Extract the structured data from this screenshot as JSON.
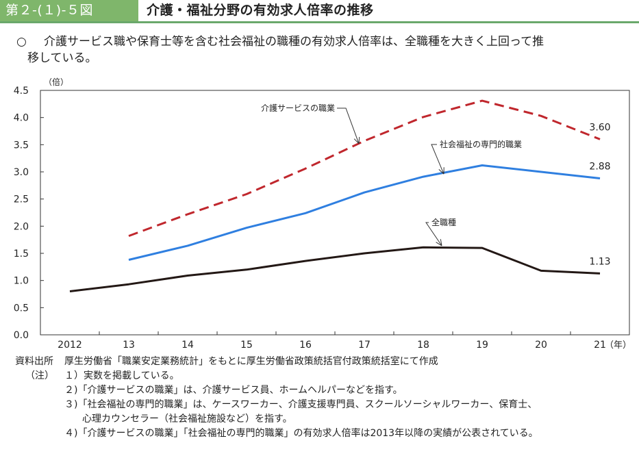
{
  "header": {
    "figure_label": "第２-(１)-５図",
    "title": "介護・福祉分野の有効求人倍率の推移"
  },
  "lead": {
    "mark": "○",
    "line1": "介護サービス職や保育士等を含む社会福祉の職種の有効求人倍率は、全職種を大きく上回って推",
    "line2": "移している。"
  },
  "chart_data": {
    "type": "line",
    "ylabel": "（倍）",
    "xunit": "（年）",
    "ylim": [
      0,
      4.5
    ],
    "yticks": [
      "0.0",
      "0.5",
      "1.0",
      "1.5",
      "2.0",
      "2.5",
      "3.0",
      "3.5",
      "4.0",
      "4.5"
    ],
    "x": [
      "2012",
      "13",
      "14",
      "15",
      "16",
      "17",
      "18",
      "19",
      "20",
      "21"
    ],
    "series": [
      {
        "name": "介護サービスの職業",
        "values": [
          null,
          1.82,
          2.22,
          2.59,
          3.06,
          3.57,
          4.01,
          4.31,
          4.03,
          3.6
        ],
        "color": "#c0272d",
        "dashed": true,
        "end_label": "3.60"
      },
      {
        "name": "社会福祉の専門的職業",
        "values": [
          null,
          1.38,
          1.64,
          1.97,
          2.24,
          2.62,
          2.91,
          3.12,
          3.0,
          2.88
        ],
        "color": "#2f7fe0",
        "dashed": false,
        "end_label": "2.88"
      },
      {
        "name": "全職種",
        "values": [
          0.8,
          0.93,
          1.09,
          1.2,
          1.36,
          1.5,
          1.61,
          1.6,
          1.18,
          1.13
        ],
        "color": "#231815",
        "dashed": false,
        "end_label": "1.13"
      }
    ]
  },
  "notes": {
    "source_label": "資料出所",
    "source_text": "厚生労働省「職業安定業務統計」をもとに厚生労働省政策統括官付政策統括室にて作成",
    "note_label": "（注）",
    "items": [
      "１）実数を掲載している。",
      "２)「介護サービスの職業」は、介護サービス員、ホームヘルパーなどを指す。",
      "３)「社会福祉の専門的職業」は、ケースワーカー、介護支援専門員、スクールソーシャルワーカー、保育士、",
      "心理カウンセラー（社会福祉施設など）を指す。",
      "４)「介護サービスの職業」「社会福祉の専門的職業」の有効求人倍率は2013年以降の実績が公表されている。"
    ]
  }
}
